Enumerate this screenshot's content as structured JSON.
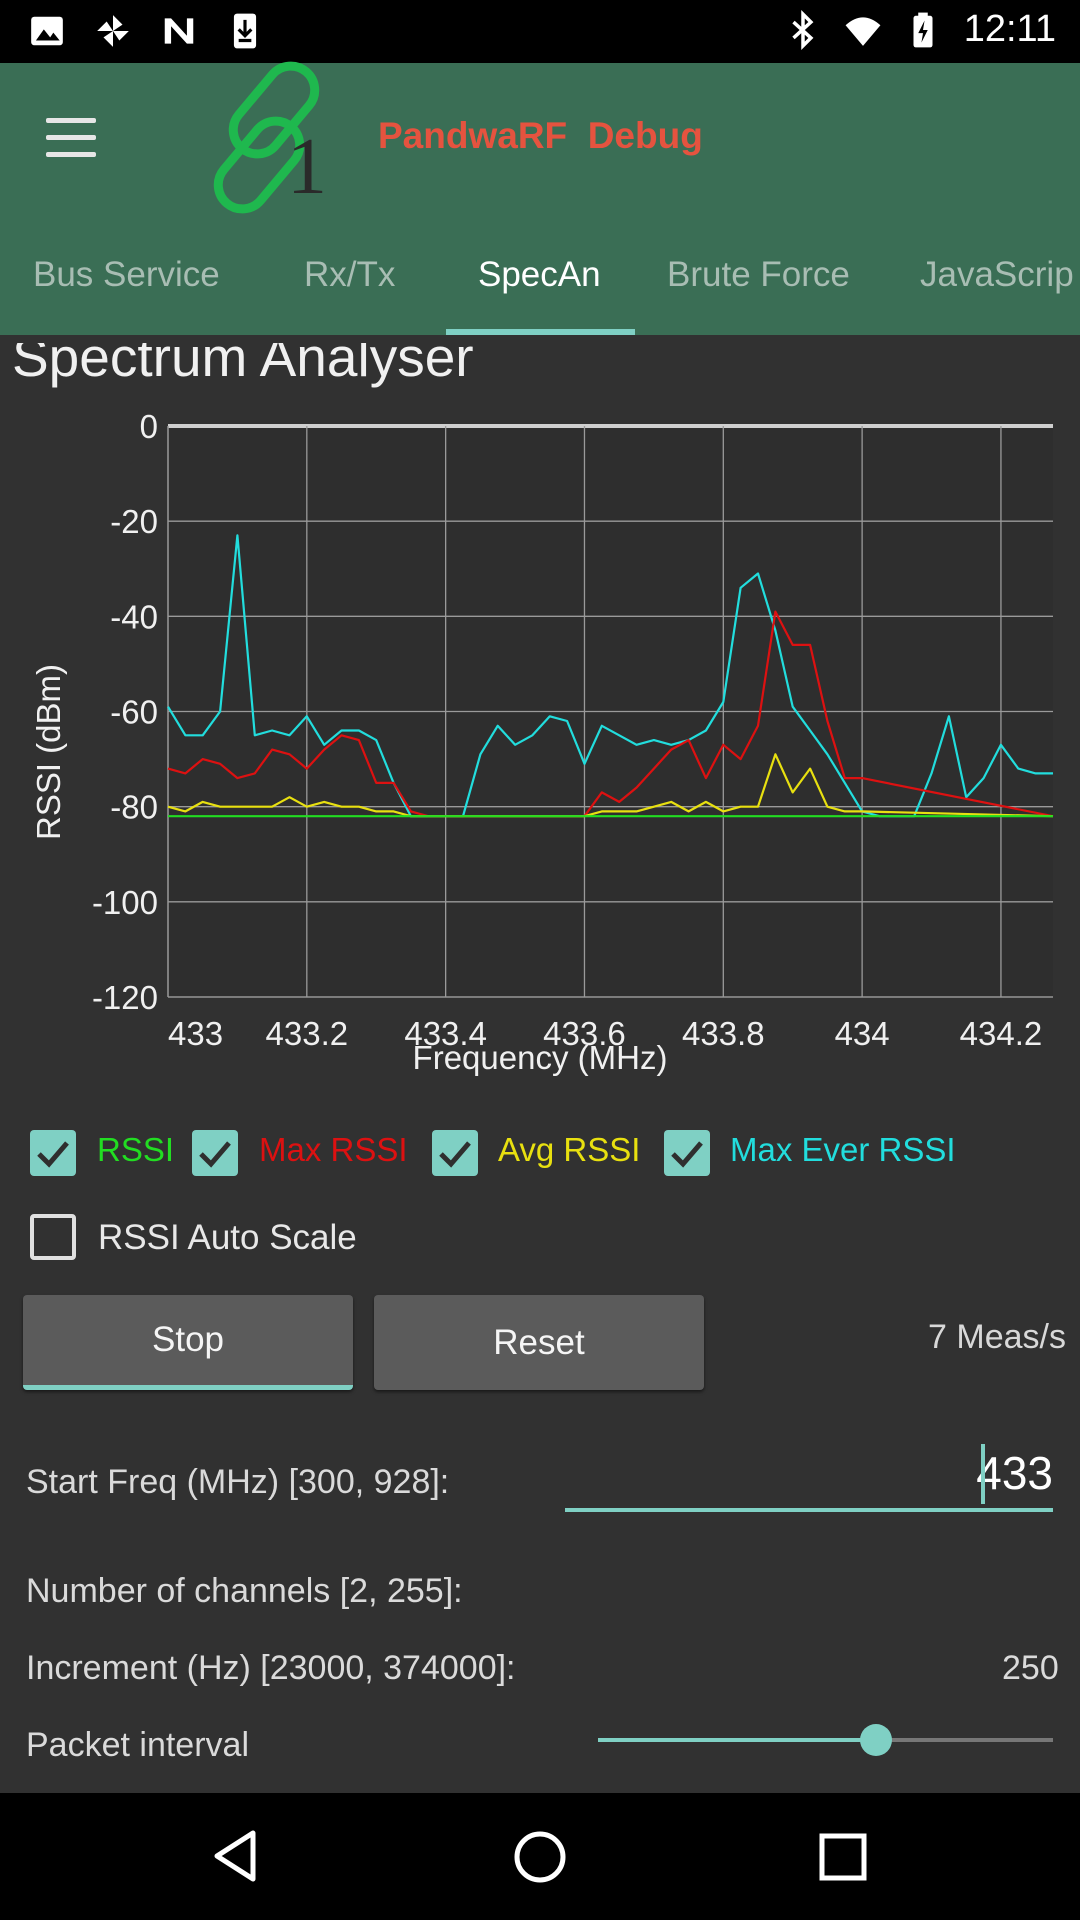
{
  "status_bar": {
    "time": "12:11",
    "left_icons": [
      "image-icon",
      "pinwheel-icon",
      "n-logo-icon",
      "download-icon"
    ],
    "right_icons": [
      "bluetooth-icon",
      "wifi-icon",
      "battery-charging-icon"
    ]
  },
  "app_bar": {
    "title": "PandwaRF  Debug",
    "title_color": "#e5533f",
    "background": "#3a6e55",
    "menu_icon": "hamburger-menu-icon",
    "logo_icon": "chain-link-logo-icon"
  },
  "tabs": [
    {
      "label": "Bus Service",
      "active": false
    },
    {
      "label": "Rx/Tx",
      "active": false
    },
    {
      "label": "SpecAn",
      "active": true
    },
    {
      "label": "Brute Force",
      "active": false
    },
    {
      "label": "JavaScrip",
      "active": false
    }
  ],
  "section_title": "Spectrum Analyser",
  "chart_data": {
    "type": "line",
    "xlabel": "Frequency (MHz)",
    "ylabel": "RSSI (dBm)",
    "ylim": [
      -120,
      0
    ],
    "xlim": [
      433,
      434.275
    ],
    "y_ticks": [
      "0",
      "-20",
      "-40",
      "-60",
      "-80",
      "-100",
      "-120"
    ],
    "x_ticks": [
      "433",
      "433.2",
      "433.4",
      "433.6",
      "433.8",
      "434",
      "434.2"
    ],
    "grid": true,
    "series": [
      {
        "name": "RSSI",
        "color": "#22dd22",
        "x": [
          433,
          434.275
        ],
        "y": [
          -82,
          -82
        ]
      },
      {
        "name": "Max RSSI",
        "color": "#dd1111",
        "x": [
          433,
          433.025,
          433.05,
          433.075,
          433.1,
          433.125,
          433.15,
          433.175,
          433.2,
          433.225,
          433.25,
          433.275,
          433.3,
          433.325,
          433.35,
          433.375,
          433.6,
          433.625,
          433.65,
          433.675,
          433.7,
          433.725,
          433.75,
          433.775,
          433.8,
          433.825,
          433.85,
          433.875,
          433.9,
          433.925,
          433.95,
          433.975,
          434,
          434.275
        ],
        "y": [
          -72,
          -73,
          -70,
          -71,
          -74,
          -73,
          -68,
          -69,
          -72,
          -68,
          -65,
          -66,
          -75,
          -75,
          -81,
          -82,
          -82,
          -77,
          -79,
          -76,
          -72,
          -68,
          -66,
          -74,
          -67,
          -70,
          -63,
          -39,
          -46,
          -46,
          -62,
          -74,
          -74,
          -82
        ]
      },
      {
        "name": "Avg RSSI",
        "color": "#e8e010",
        "x": [
          433,
          433.025,
          433.05,
          433.075,
          433.1,
          433.125,
          433.15,
          433.175,
          433.2,
          433.225,
          433.25,
          433.275,
          433.3,
          433.325,
          433.35,
          433.6,
          433.625,
          433.65,
          433.675,
          433.7,
          433.725,
          433.75,
          433.775,
          433.8,
          433.825,
          433.85,
          433.875,
          433.9,
          433.925,
          433.95,
          433.975,
          434,
          434.275
        ],
        "y": [
          -80,
          -81,
          -79,
          -80,
          -80,
          -80,
          -80,
          -78,
          -80,
          -79,
          -80,
          -80,
          -81,
          -81,
          -82,
          -82,
          -81,
          -81,
          -81,
          -80,
          -79,
          -81,
          -79,
          -81,
          -80,
          -80,
          -69,
          -77,
          -72,
          -80,
          -81,
          -81,
          -82
        ]
      },
      {
        "name": "Max Ever RSSI",
        "color": "#22dddd",
        "x": [
          433,
          433.025,
          433.05,
          433.075,
          433.1,
          433.125,
          433.15,
          433.175,
          433.2,
          433.225,
          433.25,
          433.275,
          433.3,
          433.325,
          433.35,
          433.4,
          433.425,
          433.45,
          433.475,
          433.5,
          433.525,
          433.55,
          433.575,
          433.6,
          433.625,
          433.65,
          433.675,
          433.7,
          433.725,
          433.75,
          433.775,
          433.8,
          433.825,
          433.85,
          433.875,
          433.9,
          433.925,
          433.95,
          433.975,
          434,
          434.025,
          434.05,
          434.075,
          434.1,
          434.125,
          434.15,
          434.175,
          434.2,
          434.225,
          434.25,
          434.275
        ],
        "y": [
          -59,
          -65,
          -65,
          -60,
          -23,
          -65,
          -64,
          -65,
          -61,
          -67,
          -64,
          -64,
          -66,
          -75,
          -82,
          -82,
          -82,
          -69,
          -63,
          -67,
          -65,
          -61,
          -62,
          -71,
          -63,
          -65,
          -67,
          -66,
          -67,
          -66,
          -64,
          -58,
          -34,
          -31,
          -43,
          -59,
          -64,
          -69,
          -75,
          -81,
          -82,
          -82,
          -82,
          -73,
          -61,
          -78,
          -74,
          -67,
          -72,
          -73,
          -73
        ]
      }
    ]
  },
  "legend": [
    {
      "label": "RSSI",
      "color": "#22dd22",
      "checked": true
    },
    {
      "label": "Max RSSI",
      "color": "#dd1111",
      "checked": true
    },
    {
      "label": "Avg RSSI",
      "color": "#e8e010",
      "checked": true
    },
    {
      "label": "Max Ever RSSI",
      "color": "#22dddd",
      "checked": true
    }
  ],
  "auto_scale": {
    "label": "RSSI Auto Scale",
    "checked": false
  },
  "buttons": {
    "stop": "Stop",
    "reset": "Reset"
  },
  "meas_rate": "7 Meas/s",
  "fields": {
    "start_freq_label": "Start Freq (MHz) [300, 928]:",
    "start_freq_value": "433",
    "channels_label": "Number of channels [2, 255]:",
    "increment_label": "Increment (Hz) [23000, 374000]:",
    "increment_value": "250",
    "packet_interval_label": "Packet interval",
    "packet_interval_level": 0.61
  },
  "nav_bar": {
    "icons": [
      "back-icon",
      "home-icon",
      "recents-icon"
    ]
  }
}
